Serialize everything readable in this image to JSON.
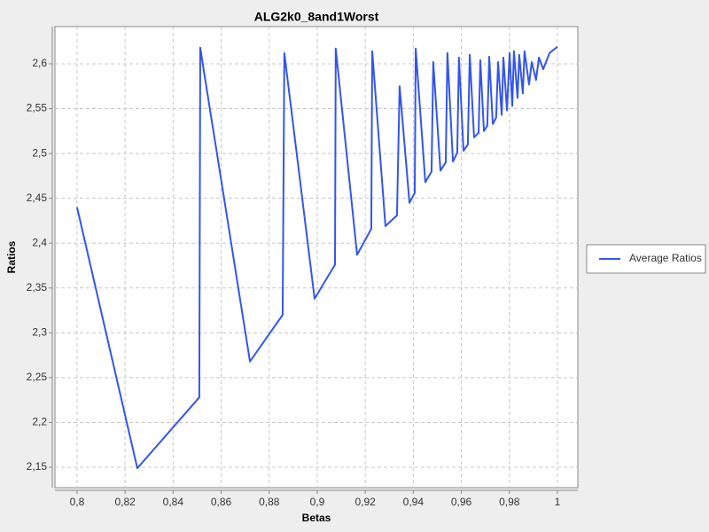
{
  "chart_data": {
    "type": "line",
    "title": "ALG2k0_8and1Worst",
    "x_label": "Betas",
    "y_label": "Ratios",
    "legend": "right",
    "grid": true,
    "xlim": [
      0.7908,
      1.0085
    ],
    "ylim": [
      2.1273,
      2.6415
    ],
    "xticks": [
      {
        "value": 0.8,
        "label": "0,8"
      },
      {
        "value": 0.82,
        "label": "0,82"
      },
      {
        "value": 0.84,
        "label": "0,84"
      },
      {
        "value": 0.86,
        "label": "0,86"
      },
      {
        "value": 0.88,
        "label": "0,88"
      },
      {
        "value": 0.9,
        "label": "0,9"
      },
      {
        "value": 0.92,
        "label": "0,92"
      },
      {
        "value": 0.94,
        "label": "0,94"
      },
      {
        "value": 0.96,
        "label": "0,96"
      },
      {
        "value": 0.98,
        "label": "0,98"
      },
      1
    ],
    "yticks": [
      {
        "value": 2.15,
        "label": "2,15"
      },
      {
        "value": 2.2,
        "label": "2,2"
      },
      {
        "value": 2.25,
        "label": "2,25"
      },
      {
        "value": 2.3,
        "label": "2,3"
      },
      {
        "value": 2.35,
        "label": "2,35"
      },
      {
        "value": 2.4,
        "label": "2,4"
      },
      {
        "value": 2.45,
        "label": "2,45"
      },
      {
        "value": 2.5,
        "label": "2,5"
      },
      {
        "value": 2.55,
        "label": "2,55"
      },
      {
        "value": 2.6,
        "label": "2,6"
      }
    ],
    "x": [
      0.8,
      0.8251,
      0.8509,
      0.8513,
      0.8528,
      0.872,
      0.8856,
      0.8863,
      0.8989,
      0.9074,
      0.9077,
      0.9166,
      0.9225,
      0.9229,
      0.9284,
      0.9332,
      0.9343,
      0.9384,
      0.9406,
      0.941,
      0.945,
      0.9476,
      0.9483,
      0.9513,
      0.9535,
      0.9542,
      0.9565,
      0.9583,
      0.959,
      0.9609,
      0.9627,
      0.9635,
      0.9653,
      0.9672,
      0.9679,
      0.9694,
      0.9708,
      0.9716,
      0.9731,
      0.9745,
      0.9753,
      0.9768,
      0.9775,
      0.979,
      0.9801,
      0.9812,
      0.9819,
      0.9834,
      0.9841,
      0.9856,
      0.9863,
      0.9882,
      0.9893,
      0.9911,
      0.9923,
      0.9941,
      0.9967,
      1.0
    ],
    "series": [
      {
        "name": "Average Ratios",
        "color": "#3355ee",
        "values": [
          2.44,
          2.149,
          2.228,
          2.618,
          2.592,
          2.268,
          2.32,
          2.612,
          2.338,
          2.376,
          2.617,
          2.387,
          2.416,
          2.614,
          2.419,
          2.431,
          2.575,
          2.445,
          2.456,
          2.617,
          2.468,
          2.48,
          2.602,
          2.481,
          2.49,
          2.612,
          2.491,
          2.501,
          2.607,
          2.503,
          2.51,
          2.61,
          2.518,
          2.523,
          2.604,
          2.525,
          2.531,
          2.608,
          2.533,
          2.54,
          2.602,
          2.543,
          2.607,
          2.548,
          2.612,
          2.553,
          2.614,
          2.562,
          2.61,
          2.567,
          2.614,
          2.577,
          2.602,
          2.582,
          2.607,
          2.594,
          2.612,
          2.619
        ]
      }
    ]
  }
}
